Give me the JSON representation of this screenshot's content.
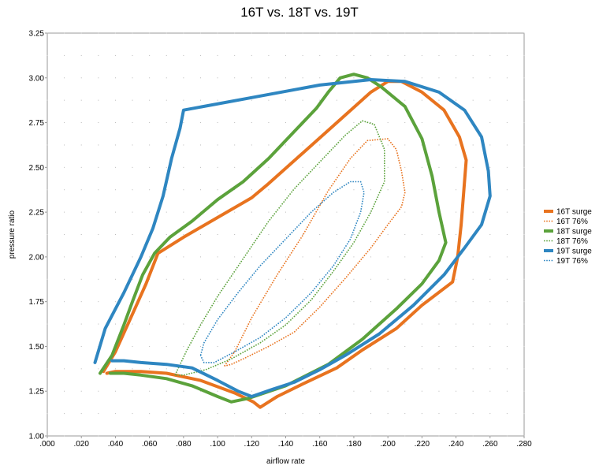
{
  "chart_data": {
    "type": "line",
    "title": "16T vs. 18T vs. 19T",
    "xlabel": "airflow rate",
    "ylabel": "pressure ratio",
    "xlim": [
      0.0,
      0.28
    ],
    "ylim": [
      1.0,
      3.25
    ],
    "xticks": [
      0.0,
      0.02,
      0.04,
      0.06,
      0.08,
      0.1,
      0.12,
      0.14,
      0.16,
      0.18,
      0.2,
      0.22,
      0.24,
      0.26,
      0.28
    ],
    "xtick_labels": [
      ".000",
      ".020",
      ".040",
      ".060",
      ".080",
      ".100",
      ".120",
      ".140",
      ".160",
      ".180",
      ".200",
      ".220",
      ".240",
      ".260",
      ".280"
    ],
    "yticks": [
      1.0,
      1.25,
      1.5,
      1.75,
      2.0,
      2.25,
      2.5,
      2.75,
      3.0,
      3.25
    ],
    "ytick_labels": [
      "1.00",
      "1.25",
      "1.50",
      "1.75",
      "2.00",
      "2.25",
      "2.50",
      "2.75",
      "3.00",
      "3.25"
    ],
    "grid": "dotted",
    "legend_position": "right",
    "series": [
      {
        "name": "16T surge",
        "color": "#E8731F",
        "style": "solid",
        "points": [
          [
            0.033,
            1.36
          ],
          [
            0.04,
            1.47
          ],
          [
            0.05,
            1.68
          ],
          [
            0.058,
            1.85
          ],
          [
            0.065,
            2.02
          ],
          [
            0.08,
            2.11
          ],
          [
            0.1,
            2.22
          ],
          [
            0.12,
            2.33
          ],
          [
            0.13,
            2.41
          ],
          [
            0.15,
            2.58
          ],
          [
            0.17,
            2.75
          ],
          [
            0.19,
            2.92
          ],
          [
            0.2,
            2.98
          ],
          [
            0.208,
            2.98
          ],
          [
            0.22,
            2.92
          ],
          [
            0.233,
            2.82
          ],
          [
            0.242,
            2.67
          ],
          [
            0.246,
            2.54
          ],
          [
            0.243,
            2.18
          ],
          [
            0.241,
            2.0
          ],
          [
            0.238,
            1.86
          ],
          [
            0.22,
            1.73
          ],
          [
            0.205,
            1.6
          ],
          [
            0.185,
            1.48
          ],
          [
            0.17,
            1.38
          ],
          [
            0.15,
            1.29
          ],
          [
            0.135,
            1.22
          ],
          [
            0.125,
            1.16
          ],
          [
            0.121,
            1.19
          ],
          [
            0.11,
            1.24
          ],
          [
            0.09,
            1.31
          ],
          [
            0.07,
            1.35
          ],
          [
            0.055,
            1.36
          ],
          [
            0.04,
            1.36
          ],
          [
            0.035,
            1.35
          ]
        ]
      },
      {
        "name": "16T 76%",
        "color": "#E8731F",
        "style": "dotted",
        "points": [
          [
            0.104,
            1.39
          ],
          [
            0.11,
            1.47
          ],
          [
            0.12,
            1.66
          ],
          [
            0.135,
            1.9
          ],
          [
            0.15,
            2.12
          ],
          [
            0.165,
            2.37
          ],
          [
            0.178,
            2.55
          ],
          [
            0.188,
            2.65
          ],
          [
            0.2,
            2.66
          ],
          [
            0.205,
            2.6
          ],
          [
            0.208,
            2.48
          ],
          [
            0.21,
            2.36
          ],
          [
            0.208,
            2.28
          ],
          [
            0.2,
            2.18
          ],
          [
            0.19,
            2.05
          ],
          [
            0.175,
            1.88
          ],
          [
            0.16,
            1.72
          ],
          [
            0.145,
            1.58
          ],
          [
            0.13,
            1.5
          ],
          [
            0.115,
            1.43
          ],
          [
            0.108,
            1.4
          ],
          [
            0.104,
            1.39
          ]
        ]
      },
      {
        "name": "18T surge",
        "color": "#5BA23B",
        "style": "solid",
        "points": [
          [
            0.031,
            1.35
          ],
          [
            0.038,
            1.45
          ],
          [
            0.045,
            1.62
          ],
          [
            0.05,
            1.75
          ],
          [
            0.056,
            1.9
          ],
          [
            0.063,
            2.02
          ],
          [
            0.072,
            2.11
          ],
          [
            0.085,
            2.2
          ],
          [
            0.1,
            2.32
          ],
          [
            0.115,
            2.42
          ],
          [
            0.13,
            2.55
          ],
          [
            0.145,
            2.7
          ],
          [
            0.158,
            2.83
          ],
          [
            0.165,
            2.92
          ],
          [
            0.172,
            3.0
          ],
          [
            0.18,
            3.02
          ],
          [
            0.188,
            3.0
          ],
          [
            0.196,
            2.95
          ],
          [
            0.21,
            2.84
          ],
          [
            0.22,
            2.66
          ],
          [
            0.226,
            2.45
          ],
          [
            0.23,
            2.25
          ],
          [
            0.234,
            2.08
          ],
          [
            0.23,
            1.98
          ],
          [
            0.22,
            1.85
          ],
          [
            0.205,
            1.71
          ],
          [
            0.185,
            1.54
          ],
          [
            0.165,
            1.4
          ],
          [
            0.14,
            1.28
          ],
          [
            0.118,
            1.21
          ],
          [
            0.108,
            1.19
          ],
          [
            0.1,
            1.22
          ],
          [
            0.085,
            1.28
          ],
          [
            0.07,
            1.32
          ],
          [
            0.055,
            1.34
          ],
          [
            0.045,
            1.35
          ],
          [
            0.037,
            1.35
          ]
        ]
      },
      {
        "name": "18T 76%",
        "color": "#5BA23B",
        "style": "dotted",
        "points": [
          [
            0.075,
            1.34
          ],
          [
            0.082,
            1.48
          ],
          [
            0.09,
            1.62
          ],
          [
            0.1,
            1.78
          ],
          [
            0.115,
            1.99
          ],
          [
            0.13,
            2.2
          ],
          [
            0.145,
            2.38
          ],
          [
            0.16,
            2.53
          ],
          [
            0.175,
            2.68
          ],
          [
            0.185,
            2.76
          ],
          [
            0.192,
            2.74
          ],
          [
            0.198,
            2.6
          ],
          [
            0.198,
            2.42
          ],
          [
            0.19,
            2.25
          ],
          [
            0.18,
            2.08
          ],
          [
            0.168,
            1.92
          ],
          [
            0.155,
            1.76
          ],
          [
            0.14,
            1.62
          ],
          [
            0.125,
            1.52
          ],
          [
            0.108,
            1.43
          ],
          [
            0.093,
            1.37
          ],
          [
            0.08,
            1.34
          ],
          [
            0.075,
            1.34
          ]
        ]
      },
      {
        "name": "19T surge",
        "color": "#2E86C1",
        "style": "solid",
        "points": [
          [
            0.028,
            1.41
          ],
          [
            0.034,
            1.6
          ],
          [
            0.045,
            1.8
          ],
          [
            0.055,
            2.0
          ],
          [
            0.062,
            2.16
          ],
          [
            0.068,
            2.34
          ],
          [
            0.073,
            2.55
          ],
          [
            0.078,
            2.72
          ],
          [
            0.08,
            2.82
          ],
          [
            0.12,
            2.89
          ],
          [
            0.16,
            2.96
          ],
          [
            0.19,
            2.99
          ],
          [
            0.21,
            2.98
          ],
          [
            0.23,
            2.92
          ],
          [
            0.245,
            2.82
          ],
          [
            0.255,
            2.67
          ],
          [
            0.259,
            2.48
          ],
          [
            0.26,
            2.34
          ],
          [
            0.255,
            2.18
          ],
          [
            0.245,
            2.05
          ],
          [
            0.233,
            1.9
          ],
          [
            0.215,
            1.73
          ],
          [
            0.195,
            1.57
          ],
          [
            0.175,
            1.45
          ],
          [
            0.16,
            1.37
          ],
          [
            0.145,
            1.3
          ],
          [
            0.132,
            1.26
          ],
          [
            0.12,
            1.22
          ],
          [
            0.112,
            1.25
          ],
          [
            0.1,
            1.31
          ],
          [
            0.085,
            1.38
          ],
          [
            0.07,
            1.4
          ],
          [
            0.055,
            1.41
          ],
          [
            0.045,
            1.42
          ],
          [
            0.038,
            1.42
          ]
        ]
      },
      {
        "name": "19T 76%",
        "color": "#2E86C1",
        "style": "dotted",
        "points": [
          [
            0.09,
            1.45
          ],
          [
            0.092,
            1.52
          ],
          [
            0.1,
            1.65
          ],
          [
            0.112,
            1.8
          ],
          [
            0.125,
            1.95
          ],
          [
            0.14,
            2.1
          ],
          [
            0.155,
            2.25
          ],
          [
            0.168,
            2.36
          ],
          [
            0.178,
            2.42
          ],
          [
            0.184,
            2.42
          ],
          [
            0.186,
            2.36
          ],
          [
            0.184,
            2.25
          ],
          [
            0.178,
            2.1
          ],
          [
            0.168,
            1.95
          ],
          [
            0.155,
            1.8
          ],
          [
            0.14,
            1.66
          ],
          [
            0.125,
            1.55
          ],
          [
            0.11,
            1.47
          ],
          [
            0.098,
            1.41
          ],
          [
            0.092,
            1.41
          ],
          [
            0.09,
            1.45
          ]
        ]
      }
    ]
  }
}
